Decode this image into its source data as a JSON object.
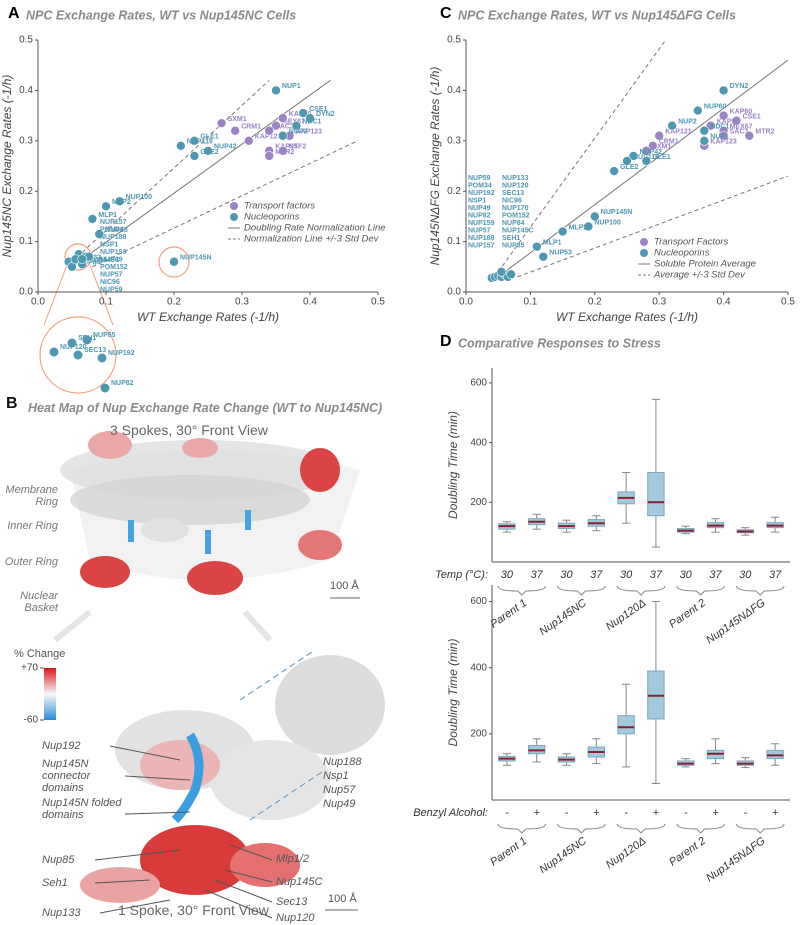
{
  "chart_data": [
    {
      "type": "scatter",
      "letter": "A",
      "title": "NPC Exchange Rates, WT vs Nup145NC Cells",
      "xlabel": "WT Exchange Rates (-1/h)",
      "ylabel": "Nup145NC Exchange Rates (-1/h)",
      "xlim": [
        0,
        0.5
      ],
      "ylim": [
        0,
        0.5
      ],
      "xticks": [
        {
          "value": 0,
          "label": "0.0"
        },
        0.1,
        0.2,
        0.3,
        0.4,
        0.5
      ],
      "yticks": [
        {
          "value": 0,
          "label": "0.0"
        },
        0.1,
        0.2,
        0.3,
        0.4,
        0.5
      ],
      "legend": "center right",
      "series": [
        {
          "name": "Transport factors",
          "color": "#9a84c4",
          "labels": [
            "SXM1",
            "CRM1",
            "KAP121",
            "MEX67",
            "SAC3",
            "KAP60",
            "KAP123",
            "KAP95",
            "NTF2",
            "MTR2"
          ],
          "x": [
            0.27,
            0.29,
            0.31,
            0.35,
            0.34,
            0.36,
            0.37,
            0.34,
            0.36,
            0.34
          ],
          "y": [
            0.335,
            0.32,
            0.3,
            0.33,
            0.32,
            0.345,
            0.31,
            0.28,
            0.28,
            0.27
          ]
        },
        {
          "name": "Nucleoporins",
          "color": "#4f97b0",
          "labels": [
            "NUP1",
            "CSE1",
            "DYN2",
            "NDC1",
            "NUP2",
            "GLE1",
            "NUP116",
            "NUP42",
            "GLE2",
            "NUP100",
            "MLP2",
            "MLP1",
            "NUP53",
            "NUP145N",
            "NUP133",
            "NUP84*",
            "NUP145C",
            null,
            null,
            null,
            null,
            null
          ],
          "x": [
            0.35,
            0.39,
            0.4,
            0.38,
            0.36,
            0.23,
            0.21,
            0.25,
            0.23,
            0.12,
            0.1,
            0.08,
            0.09,
            0.2,
            0.045,
            0.05,
            0.065,
            0.06,
            0.07,
            0.055,
            0.075,
            0.065
          ],
          "y": [
            0.4,
            0.355,
            0.345,
            0.33,
            0.31,
            0.3,
            0.29,
            0.28,
            0.27,
            0.18,
            0.17,
            0.145,
            0.115,
            0.06,
            0.06,
            0.05,
            0.055,
            0.075,
            0.07,
            0.065,
            0.07,
            0.065
          ]
        }
      ],
      "reference_lines": [
        {
          "name": "Doubling Rate Normalization Line",
          "style": "solid",
          "x": [
            0.05,
            0.43
          ],
          "y": [
            0.05,
            0.42
          ]
        },
        {
          "name": "Normalization Line +/-3 Std Dev",
          "style": "dashed",
          "x": [
            0.05,
            0.34,
            null,
            0.08,
            0.47
          ],
          "y": [
            0.06,
            0.42,
            null,
            0.05,
            0.3
          ]
        }
      ],
      "cluster_labels": [
        [
          "NUP157",
          "POM34",
          "NUP188",
          "NSP1",
          "NUP159",
          "NUP49",
          "POM152",
          "NUP57",
          "NIC96",
          "NUP59"
        ]
      ],
      "inset": {
        "labels": [
          "SEH1",
          "NUP85",
          "NUP120",
          "SEC13",
          "NUP192",
          "NUP82"
        ],
        "x": [
          0.058,
          0.063,
          0.052,
          0.06,
          0.068,
          0.069
        ],
        "y": [
          0.067,
          0.068,
          0.064,
          0.063,
          0.062,
          0.052
        ]
      }
    },
    {
      "type": "scatter",
      "letter": "C",
      "title": "NPC Exchange Rates, WT vs Nup145ΔFG Cells",
      "xlabel": "WT Exchange Rates (-1/h)",
      "ylabel": "Nup145NΔFG Exchange Rates (-1/h)",
      "xlim": [
        0,
        0.5
      ],
      "ylim": [
        0,
        0.5
      ],
      "xticks": [
        {
          "value": 0,
          "label": "0.0"
        },
        0.1,
        0.2,
        0.3,
        0.4,
        0.5
      ],
      "yticks": [
        {
          "value": 0,
          "label": "0.0"
        },
        0.1,
        0.2,
        0.3,
        0.4,
        0.5
      ],
      "legend": "lower right",
      "series": [
        {
          "name": "Transport Factors",
          "color": "#9a84c4",
          "labels": [
            "KAP60",
            "CSE1",
            "KAP95",
            "MEX67",
            "SAC3",
            "MTR2",
            "KAP123",
            "KAP121",
            "CRM1",
            "SXM1"
          ],
          "x": [
            0.4,
            0.42,
            0.38,
            0.4,
            0.4,
            0.44,
            0.37,
            0.3,
            0.29,
            0.28
          ],
          "y": [
            0.35,
            0.34,
            0.33,
            0.32,
            0.31,
            0.31,
            0.29,
            0.31,
            0.29,
            0.28
          ]
        },
        {
          "name": "Nucleoporins",
          "color": "#4f97b0",
          "labels": [
            "DYN2",
            "NUP60",
            "NUP2",
            "NDC1",
            "NUP1",
            "NUP42",
            "NUP116",
            "GLE1",
            "GLE2",
            "NUP145N",
            "NUP100",
            "MLP2",
            "MLP1",
            "NUP53",
            null,
            null,
            null,
            null,
            null,
            null,
            null,
            null
          ],
          "x": [
            0.4,
            0.36,
            0.32,
            0.37,
            0.37,
            0.26,
            0.25,
            0.28,
            0.23,
            0.2,
            0.19,
            0.15,
            0.11,
            0.12,
            0.04,
            0.045,
            0.05,
            0.055,
            0.06,
            0.065,
            0.07,
            0.055
          ],
          "y": [
            0.4,
            0.36,
            0.33,
            0.32,
            0.3,
            0.27,
            0.26,
            0.26,
            0.24,
            0.15,
            0.13,
            0.12,
            0.09,
            0.07,
            0.028,
            0.03,
            0.032,
            0.03,
            0.035,
            0.03,
            0.035,
            0.04
          ]
        }
      ],
      "reference_lines": [
        {
          "name": "Soluble Protein Average",
          "style": "solid",
          "x": [
            0.05,
            0.5
          ],
          "y": [
            0.03,
            0.46
          ]
        },
        {
          "name": "Average +/-3 Std Dev",
          "style": "dashed",
          "x": [
            0.05,
            0.31,
            null,
            0.08,
            0.5
          ],
          "y": [
            0.04,
            0.5,
            null,
            0.03,
            0.23
          ]
        }
      ],
      "cluster_labels": [
        [
          "NUP59",
          "POM34",
          "NUP192",
          "NSP1",
          "NUP49",
          "NUP82",
          "NUP159",
          "NUP57",
          "NUP188",
          "NUP157"
        ],
        [
          "NUP133",
          "NUP120",
          "SEC13",
          "NIC96",
          "NUP170",
          "POM152",
          "NUP84",
          "NUP145C",
          "SEH1",
          "NUP85"
        ]
      ]
    },
    {
      "type": "box",
      "letter": "D",
      "title": "Comparative Responses to Stress",
      "ylabel": "Doubling Time (min)",
      "ylim": [
        0,
        650
      ],
      "yticks": [
        200,
        400,
        600
      ],
      "color": "#a3c9dc",
      "median_color": "#8b1e30",
      "condition_label": "Temp (°C):",
      "groups": [
        "Parent 1",
        "Nup145NC",
        "Nup120Δ",
        "Parent 2",
        "Nup145NΔFG"
      ],
      "categories": [
        "30",
        "37",
        "30",
        "37",
        "30",
        "37",
        "30",
        "37",
        "30",
        "37"
      ],
      "boxes": [
        {
          "whislo": 100,
          "q1": 110,
          "med": 120,
          "q3": 128,
          "whishi": 135
        },
        {
          "whislo": 110,
          "q1": 125,
          "med": 135,
          "q3": 145,
          "whishi": 160
        },
        {
          "whislo": 100,
          "q1": 112,
          "med": 120,
          "q3": 130,
          "whishi": 140
        },
        {
          "whislo": 105,
          "q1": 120,
          "med": 130,
          "q3": 142,
          "whishi": 155
        },
        {
          "whislo": 130,
          "q1": 195,
          "med": 215,
          "q3": 235,
          "whishi": 300
        },
        {
          "whislo": 50,
          "q1": 155,
          "med": 200,
          "q3": 300,
          "whishi": 545
        },
        {
          "whislo": 95,
          "q1": 100,
          "med": 105,
          "q3": 112,
          "whishi": 120
        },
        {
          "whislo": 100,
          "q1": 115,
          "med": 122,
          "q3": 132,
          "whishi": 145
        },
        {
          "whislo": 90,
          "q1": 98,
          "med": 102,
          "q3": 108,
          "whishi": 115
        },
        {
          "whislo": 100,
          "q1": 115,
          "med": 122,
          "q3": 132,
          "whishi": 150
        }
      ]
    },
    {
      "type": "box",
      "ylabel": "Doubling Time (min)",
      "ylim": [
        0,
        650
      ],
      "yticks": [
        200,
        400,
        600
      ],
      "color": "#a3c9dc",
      "median_color": "#8b1e30",
      "condition_label": "Benzyl Alcohol:",
      "groups": [
        "Parent 1",
        "Nup145NC",
        "Nup120Δ",
        "Parent 2",
        "Nup145NΔFG"
      ],
      "categories": [
        "-",
        "+",
        "-",
        "+",
        "-",
        "+",
        "-",
        "+",
        "-",
        "+"
      ],
      "boxes": [
        {
          "whislo": 105,
          "q1": 118,
          "med": 125,
          "q3": 132,
          "whishi": 140
        },
        {
          "whislo": 115,
          "q1": 140,
          "med": 150,
          "q3": 165,
          "whishi": 185
        },
        {
          "whislo": 105,
          "q1": 115,
          "med": 122,
          "q3": 130,
          "whishi": 140
        },
        {
          "whislo": 110,
          "q1": 130,
          "med": 145,
          "q3": 160,
          "whishi": 185
        },
        {
          "whislo": 100,
          "q1": 200,
          "med": 220,
          "q3": 255,
          "whishi": 350
        },
        {
          "whislo": 50,
          "q1": 245,
          "med": 315,
          "q3": 390,
          "whishi": 600
        },
        {
          "whislo": 100,
          "q1": 105,
          "med": 110,
          "q3": 118,
          "whishi": 125
        },
        {
          "whislo": 110,
          "q1": 125,
          "med": 140,
          "q3": 150,
          "whishi": 185
        },
        {
          "whislo": 98,
          "q1": 105,
          "med": 110,
          "q3": 118,
          "whishi": 128
        },
        {
          "whislo": 105,
          "q1": 125,
          "med": 135,
          "q3": 150,
          "whishi": 170
        }
      ]
    }
  ],
  "heatmap": {
    "letter": "B",
    "title": "Heat Map of Nup Exchange Rate Change (WT to Nup145NC)",
    "top_view": "3 Spokes, 30° Front View",
    "bottom_view": "1 Spoke, 30° Front View",
    "rings": [
      "Membrane Ring",
      "Inner Ring",
      "Outer Ring",
      "Nuclear Basket"
    ],
    "scale_bar": "100 Å",
    "colorbar": {
      "title": "% Change",
      "ticks": [
        {
          "value": 70,
          "label": "+70"
        },
        -60
      ]
    },
    "left_callouts": [
      "Nup192",
      "Nup145N connector domains",
      "Nup145N folded domains",
      "Nup85",
      "Seh1",
      "Nup133"
    ],
    "right_callouts": [
      "Mlp1/2",
      "Nup145C",
      "Sec13",
      "Nup120"
    ],
    "inner_ring_box": [
      "Nup188",
      "Nsp1",
      "Nup57",
      "Nup49"
    ]
  }
}
